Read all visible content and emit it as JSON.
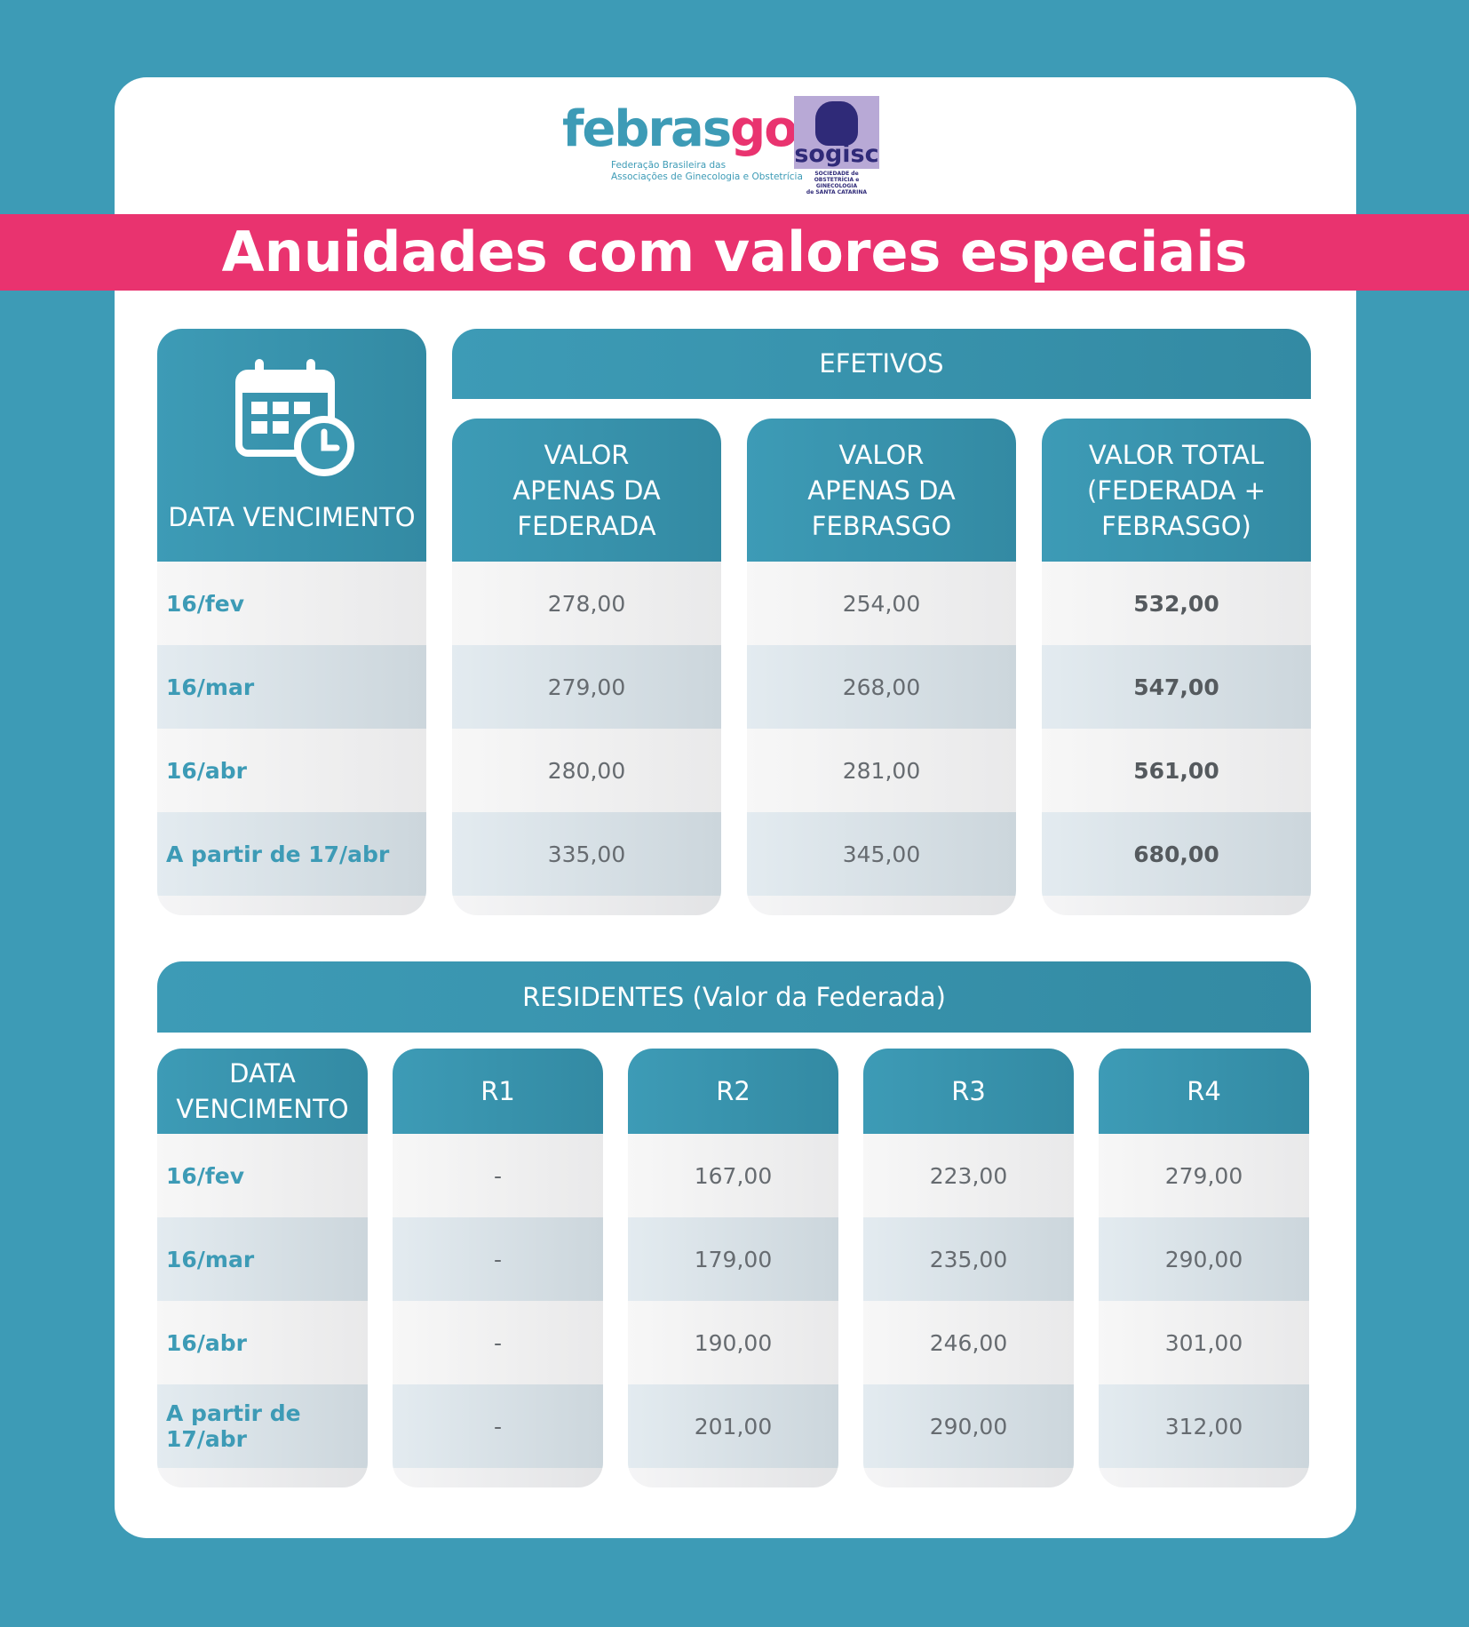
{
  "logos": {
    "febrasgo_word_a": "febras",
    "febrasgo_word_b": "go",
    "febrasgo_sub_1": "Federação Brasileira das",
    "febrasgo_sub_2": "Associações de Ginecologia e Obstetrícia",
    "sogisc_word": "sogisc",
    "sogisc_sub_1": "SOCIEDADE de",
    "sogisc_sub_2": "OBSTETRÍCIA e GINECOLOGIA",
    "sogisc_sub_3": "de SANTA CATARINA"
  },
  "title": "Anuidades com valores especiais",
  "efetivos": {
    "section_label": "EFETIVOS",
    "date_header": "DATA VENCIMENTO",
    "col_headers": [
      [
        "VALOR",
        "APENAS DA",
        "FEDERADA"
      ],
      [
        "VALOR",
        "APENAS DA",
        "FEBRASGO"
      ],
      [
        "VALOR TOTAL",
        "(FEDERADA +",
        "FEBRASGO)"
      ]
    ],
    "rows": [
      {
        "date": "16/fev",
        "federada": "278,00",
        "febrasgo": "254,00",
        "total": "532,00"
      },
      {
        "date": "16/mar",
        "federada": "279,00",
        "febrasgo": "268,00",
        "total": "547,00"
      },
      {
        "date": "16/abr",
        "federada": "280,00",
        "febrasgo": "281,00",
        "total": "561,00"
      },
      {
        "date": "A partir de 17/abr",
        "federada": "335,00",
        "febrasgo": "345,00",
        "total": "680,00"
      }
    ]
  },
  "residentes": {
    "section_label": "RESIDENTES (Valor da Federada)",
    "date_header": [
      "DATA",
      "VENCIMENTO"
    ],
    "col_headers": [
      "R1",
      "R2",
      "R3",
      "R4"
    ],
    "rows": [
      {
        "date": "16/fev",
        "r1": "-",
        "r2": "167,00",
        "r3": "223,00",
        "r4": "279,00"
      },
      {
        "date": "16/mar",
        "r1": "-",
        "r2": "179,00",
        "r3": "235,00",
        "r4": "290,00"
      },
      {
        "date": "16/abr",
        "r1": "-",
        "r2": "190,00",
        "r3": "246,00",
        "r4": "301,00"
      },
      {
        "date": "A partir de 17/abr",
        "r1": "-",
        "r2": "201,00",
        "r3": "290,00",
        "r4": "312,00"
      }
    ]
  },
  "colors": {
    "teal": "#3d9bb6",
    "pink": "#e9336f",
    "purple": "#2f2a78"
  }
}
